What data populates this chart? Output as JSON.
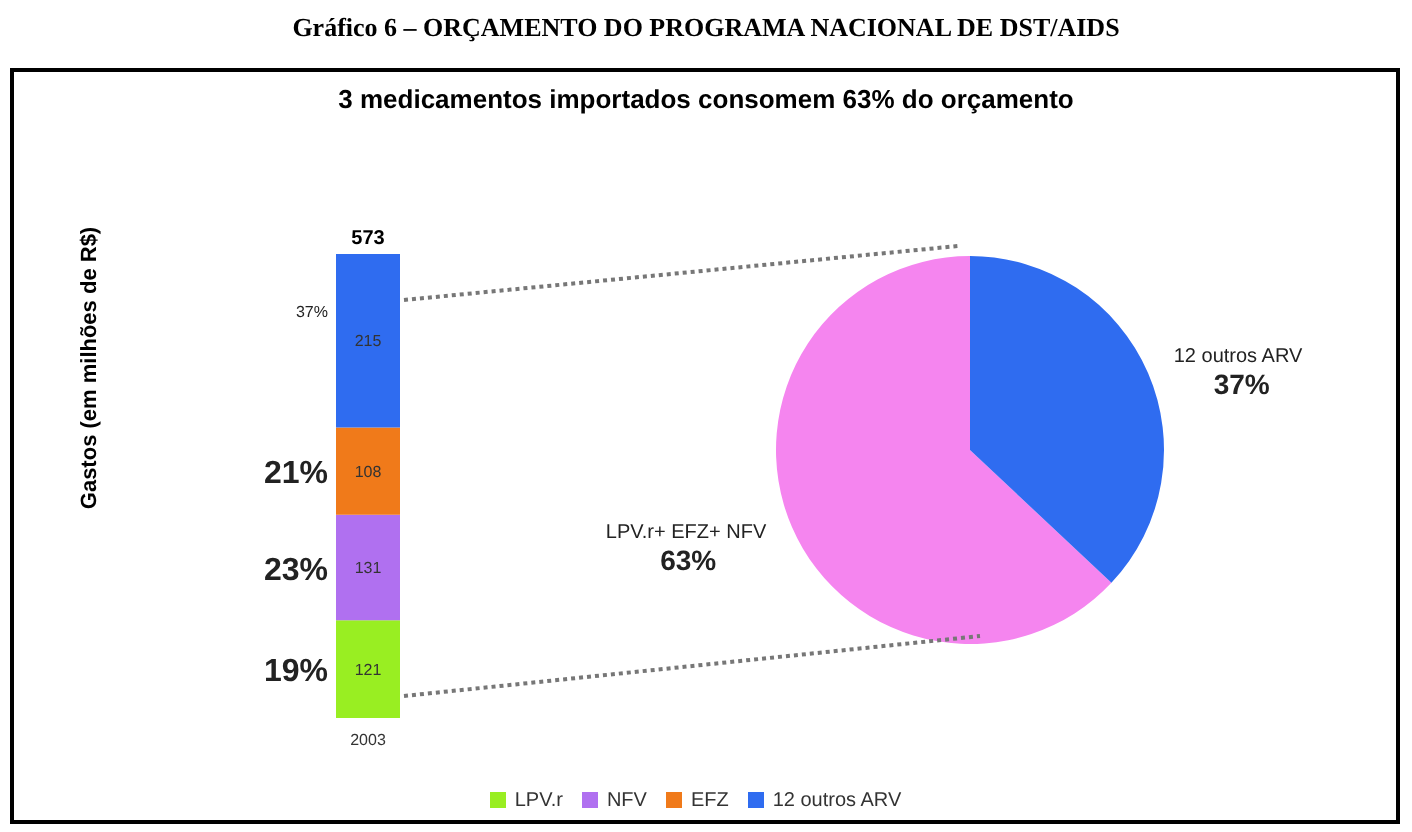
{
  "chart_data": [
    {
      "type": "bar",
      "title": "Gráfico 6 – ORÇAMENTO DO PROGRAMA NACIONAL DE DST/AIDS",
      "subtitle": "3 medicamentos importados consomem 63% do orçamento",
      "ylabel": "Gastos (em milhões de R$)",
      "stacked": true,
      "categories": [
        "2003"
      ],
      "series": [
        {
          "name": "LPV.r",
          "color": "#99ee22",
          "values": [
            121
          ]
        },
        {
          "name": "NFV",
          "color": "#b070f0",
          "values": [
            131
          ]
        },
        {
          "name": "EFZ",
          "color": "#f07a1a",
          "values": [
            108
          ]
        },
        {
          "name": "12 outros ARV",
          "color": "#2f6cf0",
          "values": [
            215
          ]
        }
      ],
      "data_labels": true,
      "totals": [
        "573"
      ],
      "legend": "bottom",
      "annotations": [
        "19%",
        "23%",
        "21%",
        "37%"
      ]
    },
    {
      "type": "pie",
      "categories": [
        "LPV.r+ EFZ+ NFV",
        "12 outros ARV"
      ],
      "values": [
        63,
        37
      ],
      "colors": [
        "#f585ef",
        "#2f6cf0"
      ],
      "value_labels": [
        "63%",
        "37%"
      ]
    }
  ]
}
